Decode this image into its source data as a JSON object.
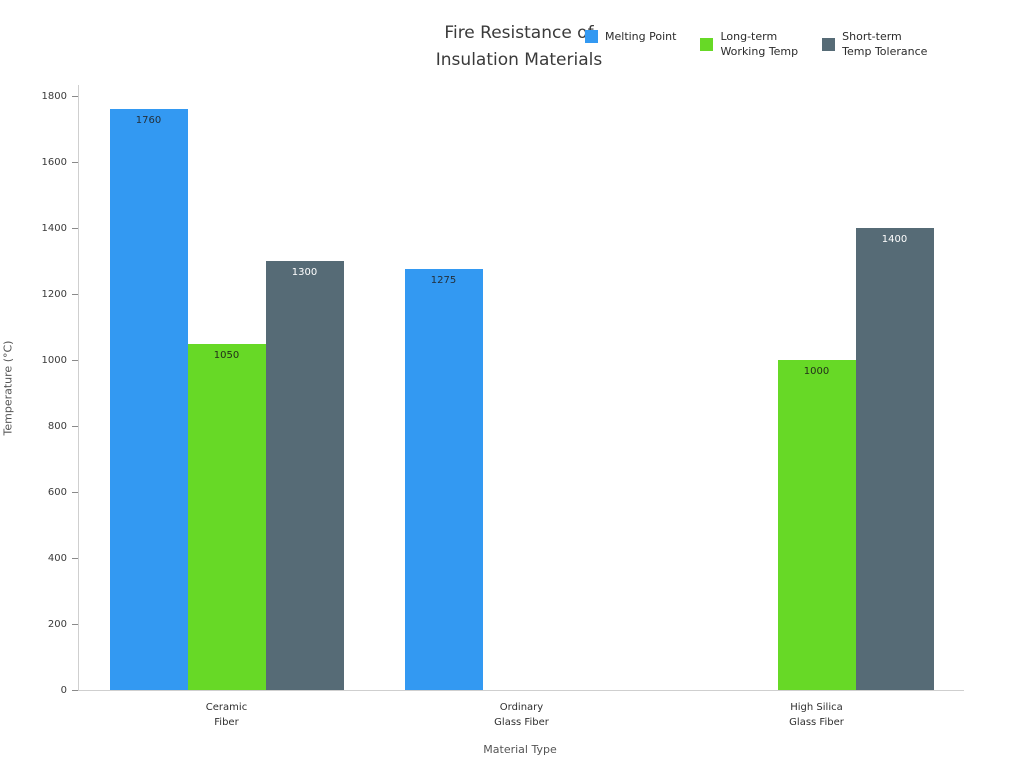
{
  "title": {
    "line1": "Fire Resistance of",
    "line2": "Insulation Materials"
  },
  "chart_data": {
    "type": "bar",
    "title": "Fire Resistance of Insulation Materials",
    "xlabel": "Material Type",
    "ylabel": "Temperature (°C)",
    "ylim": [
      0,
      1800
    ],
    "yticks": [
      0,
      200,
      400,
      600,
      800,
      1000,
      1200,
      1400,
      1600,
      1800
    ],
    "categories": [
      "Ceramic\nFiber",
      "Ordinary\nGlass Fiber",
      "High Silica\nGlass Fiber"
    ],
    "series": [
      {
        "name": "Melting Point",
        "legend_label": "Melting Point",
        "color": "#3399f2",
        "label_color": "#232f3a",
        "values": [
          1760,
          1275,
          null
        ]
      },
      {
        "name": "Long-term Working Temp",
        "legend_label": "Long-term\nWorking Temp",
        "color": "#67d926",
        "label_color": "#23301a",
        "values": [
          1050,
          null,
          1000
        ]
      },
      {
        "name": "Short-term Temp Tolerance",
        "legend_label": "Short-term\nTemp Tolerance",
        "color": "#566b76",
        "label_color": "#ffffff",
        "values": [
          1300,
          null,
          1400
        ]
      }
    ],
    "grid": false,
    "legend_position": "top-right"
  }
}
